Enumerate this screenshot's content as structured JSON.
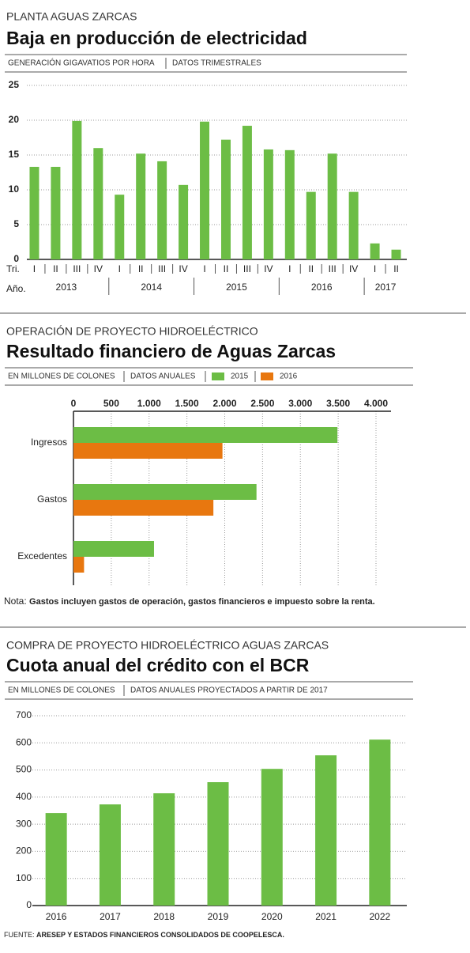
{
  "chart_data": [
    {
      "type": "bar",
      "supertitle": "PLANTA AGUAS ZARCAS",
      "title": "Baja en producción de electricidad",
      "subtitles": [
        "GENERACIÓN GIGAVATIOS POR HORA",
        "DATOS TRIMESTRALES"
      ],
      "xlabel": "Tri.",
      "group_label": "Año.",
      "groups": [
        "2013",
        "2014",
        "2015",
        "2016",
        "2017"
      ],
      "categories": [
        "I",
        "II",
        "III",
        "IV",
        "I",
        "II",
        "III",
        "IV",
        "I",
        "II",
        "III",
        "IV",
        "I",
        "II",
        "III",
        "IV",
        "I",
        "II"
      ],
      "values": [
        13.3,
        13.3,
        19.9,
        16.0,
        9.3,
        15.2,
        14.1,
        10.7,
        19.8,
        17.2,
        19.2,
        15.8,
        15.7,
        9.7,
        15.2,
        9.7,
        2.3,
        1.4
      ],
      "color": "#6cbd45",
      "ylim": [
        0,
        25
      ],
      "yticks": [
        0,
        5,
        10,
        15,
        20,
        25
      ],
      "grid": true
    },
    {
      "type": "barh",
      "supertitle": "OPERACIÓN DE PROYECTO HIDROELÉCTRICO",
      "title": "Resultado financiero de Aguas Zarcas",
      "subtitles": [
        "EN MILLONES DE COLONES",
        "DATOS ANUALES"
      ],
      "categories": [
        "Ingresos",
        "Gastos",
        "Excedentes"
      ],
      "series": [
        {
          "name": "2015",
          "color": "#6cbd45",
          "values": [
            3490,
            2420,
            1065
          ]
        },
        {
          "name": "2016",
          "color": "#e8770f",
          "values": [
            1970,
            1850,
            140
          ]
        }
      ],
      "xlim": [
        0,
        4000
      ],
      "xticks": [
        0,
        500,
        {
          "value": 1000,
          "label": "1.000"
        },
        {
          "value": 1500,
          "label": "1.500"
        },
        {
          "value": 2000,
          "label": "2.000"
        },
        {
          "value": 2500,
          "label": "2.500"
        },
        {
          "value": 3000,
          "label": "3.000"
        },
        {
          "value": 3500,
          "label": "3.500"
        },
        {
          "value": 4000,
          "label": "4.000"
        }
      ],
      "grid": true,
      "legend": "top",
      "note_label": "Nota:",
      "note": "Gastos incluyen gastos de operación, gastos financieros e impuesto sobre la renta."
    },
    {
      "type": "bar",
      "supertitle": "COMPRA DE PROYECTO HIDROELÉCTRICO AGUAS ZARCAS",
      "title": "Cuota anual del crédito con el BCR",
      "subtitles": [
        "EN MILLONES DE COLONES",
        "DATOS ANUALES PROYECTADOS A PARTIR DE 2017"
      ],
      "categories": [
        "2016",
        "2017",
        "2018",
        "2019",
        "2020",
        "2021",
        "2022"
      ],
      "values": [
        341,
        373,
        414,
        455,
        504,
        554,
        612
      ],
      "color": "#6cbd45",
      "ylim": [
        0,
        700
      ],
      "yticks": [
        0,
        100,
        200,
        300,
        400,
        500,
        600,
        700
      ],
      "grid": true
    }
  ],
  "source_label": "FUENTE:",
  "source": "ARESEP Y ESTADOS FINANCIEROS CONSOLIDADOS DE COOPELESCA."
}
